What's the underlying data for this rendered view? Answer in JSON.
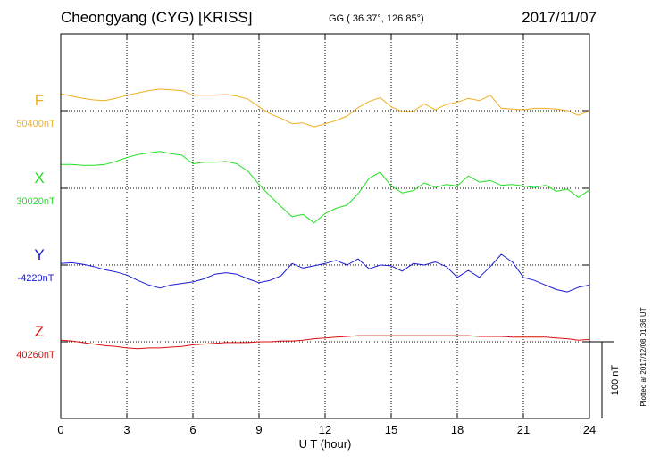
{
  "header": {
    "station": "Cheongyang (CYG)  [KRISS]",
    "coords": "GG ( 36.37°, 126.85°)",
    "date": "2017/11/07"
  },
  "footer": {
    "plotted": "Plotted at 2017/12/08 01:36 UT"
  },
  "chart_data": {
    "type": "line",
    "title": "Cheongyang (CYG)  [KRISS]",
    "xlabel": "U T (hour)",
    "ylabel": "",
    "xlim": [
      0,
      24
    ],
    "x_ticks": [
      0,
      3,
      6,
      9,
      12,
      15,
      18,
      21,
      24
    ],
    "grid": true,
    "scale_bar": {
      "value": 100,
      "label": "100 nT"
    },
    "series": [
      {
        "name": "F",
        "baseline_label": "50400nT",
        "baseline_nT": 50400,
        "color": "#f0b020",
        "x": [
          0,
          0.5,
          1,
          1.5,
          2,
          2.5,
          3,
          3.5,
          4,
          4.5,
          5,
          5.5,
          6,
          6.5,
          7,
          7.5,
          8,
          8.5,
          9,
          9.5,
          10,
          10.5,
          11,
          11.5,
          12,
          12.5,
          13,
          13.5,
          14,
          14.5,
          15,
          15.5,
          16,
          16.5,
          17,
          17.5,
          18,
          18.5,
          19,
          19.5,
          20,
          20.5,
          21,
          21.5,
          22,
          22.5,
          23,
          23.5,
          24
        ],
        "y": [
          50422,
          50419,
          50416,
          50414,
          50413,
          50416,
          50420,
          50423,
          50426,
          50428,
          50427,
          50426,
          50420,
          50420,
          50420,
          50421,
          50419,
          50415,
          50405,
          50396,
          50390,
          50383,
          50384,
          50379,
          50383,
          50387,
          50393,
          50404,
          50412,
          50417,
          50405,
          50399,
          50399,
          50409,
          50401,
          50408,
          50411,
          50416,
          50413,
          50420,
          50403,
          50402,
          50401,
          50403,
          50403,
          50402,
          50400,
          50394,
          50400
        ]
      },
      {
        "name": "X",
        "baseline_label": "30020nT",
        "baseline_nT": 30020,
        "color": "#22e022",
        "x": [
          0,
          0.5,
          1,
          1.5,
          2,
          2.5,
          3,
          3.5,
          4,
          4.5,
          5,
          5.5,
          6,
          6.5,
          7,
          7.5,
          8,
          8.5,
          9,
          9.5,
          10,
          10.5,
          11,
          11.5,
          12,
          12.5,
          13,
          13.5,
          14,
          14.5,
          15,
          15.5,
          16,
          16.5,
          17,
          17.5,
          18,
          18.5,
          19,
          19.5,
          20,
          20.5,
          21,
          21.5,
          22,
          22.5,
          23,
          23.5,
          24
        ],
        "y": [
          30051,
          30051,
          30050,
          30050,
          30051,
          30055,
          30060,
          30064,
          30066,
          30068,
          30065,
          30063,
          30052,
          30054,
          30054,
          30055,
          30052,
          30042,
          30025,
          30010,
          29996,
          29983,
          29986,
          29975,
          29987,
          29994,
          29998,
          30013,
          30033,
          30041,
          30023,
          30014,
          30017,
          30027,
          30021,
          30025,
          30023,
          30036,
          30028,
          30030,
          30024,
          30025,
          30023,
          30021,
          30024,
          30016,
          30019,
          30008,
          30018
        ]
      },
      {
        "name": "Y",
        "baseline_label": "-4220nT",
        "baseline_nT": -4220,
        "color": "#1a1ad4",
        "x": [
          0,
          0.5,
          1,
          1.5,
          2,
          2.5,
          3,
          3.5,
          4,
          4.5,
          5,
          5.5,
          6,
          6.5,
          7,
          7.5,
          8,
          8.5,
          9,
          9.5,
          10,
          10.5,
          11,
          11.5,
          12,
          12.5,
          13,
          13.5,
          14,
          14.5,
          15,
          15.5,
          16,
          16.5,
          17,
          17.5,
          18,
          18.5,
          19,
          19.5,
          20,
          20.5,
          21,
          21.5,
          22,
          22.5,
          23,
          23.5,
          24
        ],
        "y": [
          -4218,
          -4217,
          -4219,
          -4222,
          -4226,
          -4229,
          -4233,
          -4240,
          -4246,
          -4250,
          -4246,
          -4244,
          -4242,
          -4238,
          -4232,
          -4230,
          -4232,
          -4238,
          -4243,
          -4240,
          -4234,
          -4218,
          -4224,
          -4221,
          -4218,
          -4214,
          -4220,
          -4212,
          -4225,
          -4220,
          -4221,
          -4228,
          -4218,
          -4220,
          -4216,
          -4222,
          -4236,
          -4227,
          -4236,
          -4222,
          -4206,
          -4216,
          -4236,
          -4240,
          -4246,
          -4252,
          -4255,
          -4249,
          -4246
        ]
      },
      {
        "name": "Z",
        "baseline_label": "40260nT",
        "baseline_nT": 40260,
        "color": "#dd1111",
        "x": [
          0,
          0.5,
          1,
          1.5,
          2,
          2.5,
          3,
          3.5,
          4,
          4.5,
          5,
          5.5,
          6,
          6.5,
          7,
          7.5,
          8,
          8.5,
          9,
          9.5,
          10,
          10.5,
          11,
          11.5,
          12,
          12.5,
          13,
          13.5,
          14,
          14.5,
          15,
          15.5,
          16,
          16.5,
          17,
          17.5,
          18,
          18.5,
          19,
          19.5,
          20,
          20.5,
          21,
          21.5,
          22,
          22.5,
          23,
          23.5,
          24
        ],
        "y": [
          40262,
          40261,
          40259,
          40257,
          40255,
          40254,
          40252,
          40251,
          40252,
          40252,
          40253,
          40254,
          40256,
          40257,
          40258,
          40259,
          40259,
          40259,
          40260,
          40260,
          40261,
          40261,
          40262,
          40264,
          40265,
          40266,
          40267,
          40268,
          40268,
          40268,
          40268,
          40268,
          40268,
          40268,
          40268,
          40268,
          40268,
          40268,
          40267,
          40267,
          40267,
          40266,
          40266,
          40266,
          40266,
          40265,
          40264,
          40262,
          40263
        ]
      }
    ]
  }
}
